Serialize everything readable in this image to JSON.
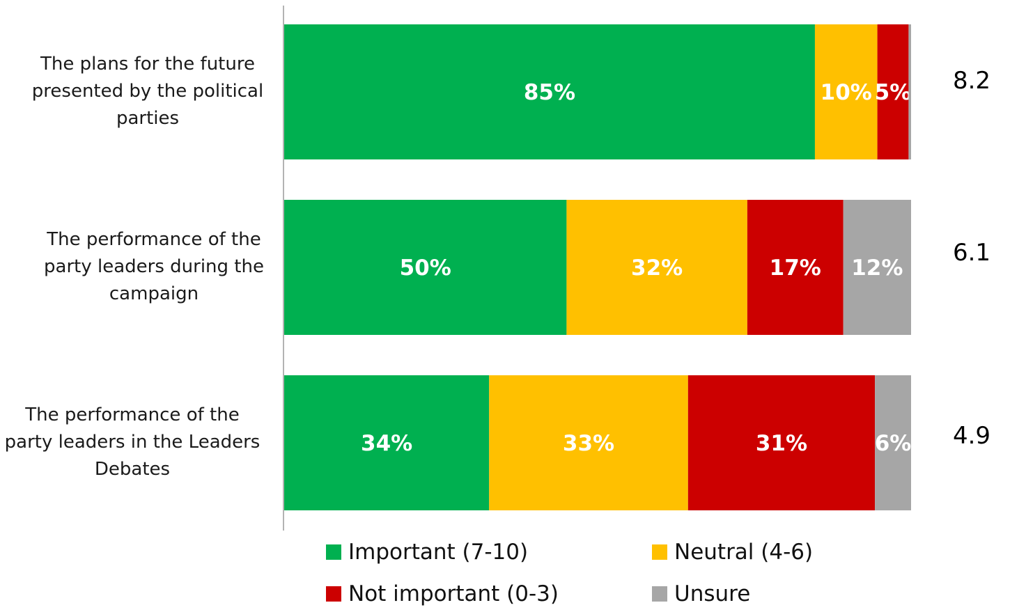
{
  "chart_data": {
    "type": "bar",
    "orientation": "horizontal",
    "stacked": true,
    "categories": [
      "The plans for the future presented by the political parties",
      "The performance of the party leaders during the campaign",
      "The performance of the party leaders in the Leaders Debates"
    ],
    "category_lines": [
      [
        "The plans for the future",
        "presented by the political",
        "parties"
      ],
      [
        "The performance of the",
        "party leaders during the",
        "campaign"
      ],
      [
        "The performance of the",
        "party leaders in the Leaders",
        "Debates"
      ]
    ],
    "series": [
      {
        "name": "Important (7-10)",
        "color": "#00B050",
        "values": [
          85,
          50,
          34
        ],
        "labels": [
          "85%",
          "50%",
          "34%"
        ]
      },
      {
        "name": "Neutral (4-6)",
        "color": "#FFC000",
        "values": [
          10,
          32,
          33
        ],
        "labels": [
          "10%",
          "32%",
          "33%"
        ]
      },
      {
        "name": "Not important (0-3)",
        "color": "#CC0000",
        "values": [
          5,
          17,
          31
        ],
        "labels": [
          "5%",
          "17%",
          "31%"
        ]
      },
      {
        "name": "Unsure",
        "color": "#A6A6A6",
        "values": [
          0.4,
          12,
          6
        ],
        "labels": [
          "",
          "12%",
          "6%"
        ]
      }
    ],
    "scores": [
      "8.2",
      "6.1",
      "4.9"
    ],
    "legend_position": "bottom",
    "grid": false
  }
}
